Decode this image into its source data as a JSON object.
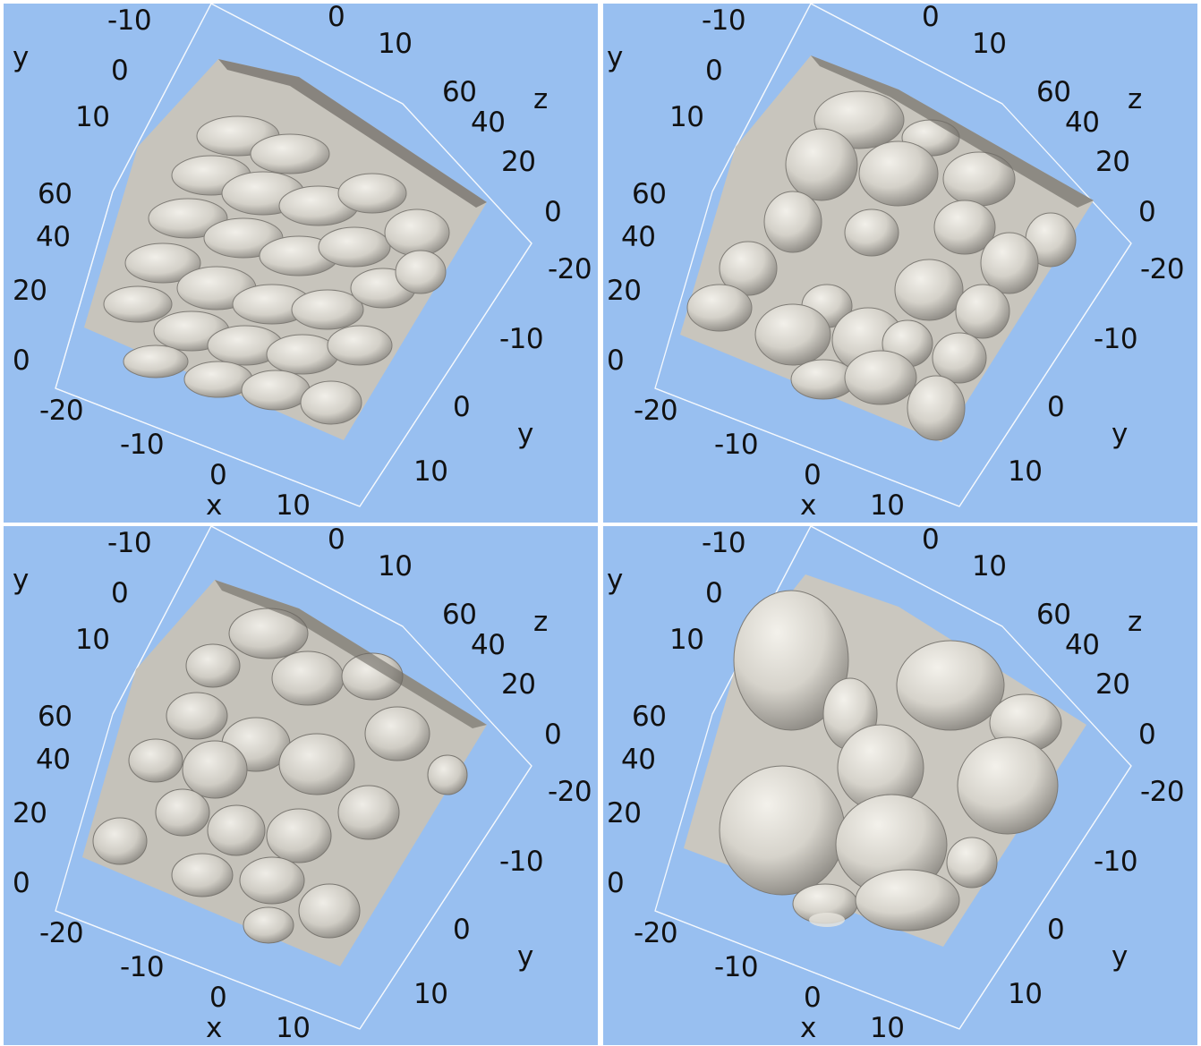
{
  "colors": {
    "background": "#98bff0",
    "separator": "#ffffff",
    "surface_light": "#e9e6df",
    "surface_mid": "#c9c6be",
    "surface_dark": "#8e8b84",
    "grid_lines": "#ffffff",
    "label_text": "#111111"
  },
  "panels": [
    {
      "id": "top-left",
      "surface_style": "layered-scales",
      "labels": {
        "y_top": "y",
        "top_m10": "-10",
        "top_0": "0",
        "top_10": "10",
        "y_left_0": "0",
        "y_left_10": "10",
        "z_left_60": "60",
        "z_left_40": "40",
        "z_left_20": "20",
        "z_left_0": "0",
        "x_m20": "-20",
        "x_m10": "-10",
        "x_0": "0",
        "x_10": "10",
        "x_axis": "x",
        "z_right_axis": "z",
        "z_right_60": "60",
        "z_right_40": "40",
        "z_right_20": "20",
        "z_right_0": "0",
        "y_right_m20": "-20",
        "y_right_m10": "-10",
        "y_right_0": "0",
        "y_right_axis": "y",
        "y_right_10": "10"
      }
    },
    {
      "id": "top-right",
      "surface_style": "bubbly-blobs",
      "labels": {
        "y_top": "y",
        "top_m10": "-10",
        "top_0": "0",
        "top_10": "10",
        "y_left_0": "0",
        "y_left_10": "10",
        "z_left_60": "60",
        "z_left_40": "40",
        "z_left_20": "20",
        "z_left_0": "0",
        "x_m20": "-20",
        "x_m10": "-10",
        "x_0": "0",
        "x_10": "10",
        "x_axis": "x",
        "z_right_axis": "z",
        "z_right_60": "60",
        "z_right_40": "40",
        "z_right_20": "20",
        "z_right_0": "0",
        "y_right_m20": "-20",
        "y_right_m10": "-10",
        "y_right_0": "0",
        "y_right_axis": "y",
        "y_right_10": "10"
      }
    },
    {
      "id": "bottom-left",
      "surface_style": "rough-plumes",
      "labels": {
        "y_top": "y",
        "top_m10": "-10",
        "top_0": "0",
        "top_10": "10",
        "y_left_0": "0",
        "y_left_10": "10",
        "z_left_60": "60",
        "z_left_40": "40",
        "z_left_20": "20",
        "z_left_0": "0",
        "x_m20": "-20",
        "x_m10": "-10",
        "x_0": "0",
        "x_10": "10",
        "x_axis": "x",
        "z_right_axis": "z",
        "z_right_60": "60",
        "z_right_40": "40",
        "z_right_20": "20",
        "z_right_0": "0",
        "y_right_m20": "-20",
        "y_right_m10": "-10",
        "y_right_0": "0",
        "y_right_axis": "y",
        "y_right_10": "10"
      }
    },
    {
      "id": "bottom-right",
      "surface_style": "large-bubbles",
      "labels": {
        "y_top": "y",
        "top_m10": "-10",
        "top_0": "0",
        "top_10": "10",
        "y_left_0": "0",
        "y_left_10": "10",
        "z_left_60": "60",
        "z_left_40": "40",
        "z_left_20": "20",
        "z_left_0": "0",
        "x_m20": "-20",
        "x_m10": "-10",
        "x_0": "0",
        "x_10": "10",
        "x_axis": "x",
        "z_right_axis": "z",
        "z_right_60": "60",
        "z_right_40": "40",
        "z_right_20": "20",
        "z_right_0": "0",
        "y_right_m20": "-20",
        "y_right_m10": "-10",
        "y_right_0": "0",
        "y_right_axis": "y",
        "y_right_10": "10"
      }
    }
  ]
}
